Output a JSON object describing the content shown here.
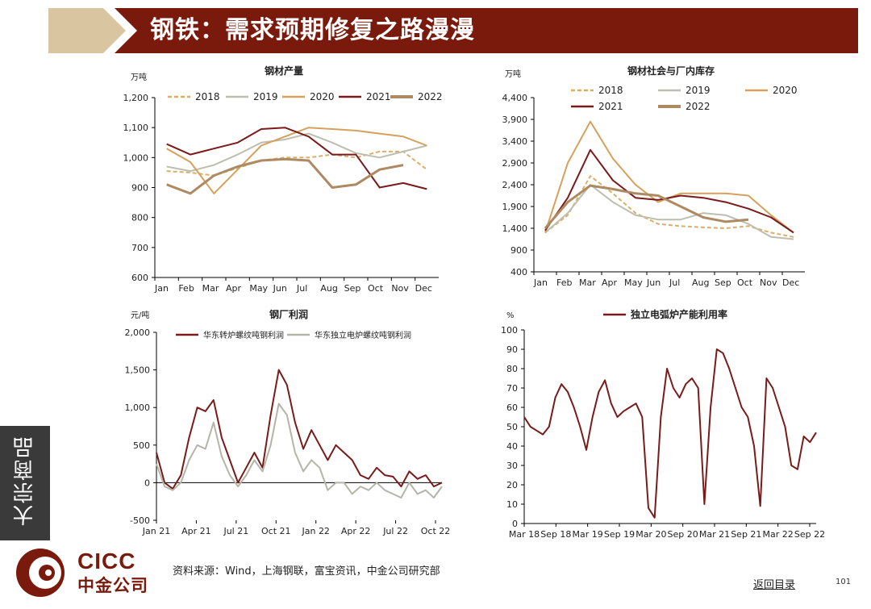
{
  "header": {
    "title": "钢铁：需求预期修复之路漫漫"
  },
  "sidebar": {
    "label": "大宗商品"
  },
  "footer": {
    "logo_en": "CICC",
    "logo_cn": "中金公司",
    "source": "资料来源：Wind，上海钢联，富宝资讯，中金公司研究部",
    "back_link": "返回目录",
    "page_number": "101"
  },
  "colors": {
    "brand": "#7a1a0c",
    "c2018": "#d9b06a",
    "c2019": "#bdbdb0",
    "c2020": "#d5a15c",
    "c2021": "#7a1a1a",
    "c2022": "#ae8a62",
    "grey": "#b4b4a8"
  },
  "chart_data": [
    {
      "id": "c1",
      "type": "line",
      "title": "钢材产量",
      "unit": "万吨",
      "categories": [
        "Jan",
        "Feb",
        "Mar",
        "Apr",
        "May",
        "Jun",
        "Jul",
        "Aug",
        "Sep",
        "Oct",
        "Nov",
        "Dec"
      ],
      "ylim": [
        600,
        1200
      ],
      "yticks": [
        "600",
        "700",
        "800",
        "900",
        "1,000",
        "1,100",
        "1,200"
      ],
      "legend_position": "top",
      "series": [
        {
          "name": "2018",
          "dash": true,
          "color": "#d9b06a",
          "values": [
            955,
            950,
            940,
            965,
            990,
            1000,
            1000,
            1010,
            1000,
            1020,
            1020,
            960
          ]
        },
        {
          "name": "2019",
          "color": "#bdbdb0",
          "values": [
            970,
            955,
            975,
            1010,
            1050,
            1060,
            1080,
            1050,
            1015,
            1000,
            1020,
            1040
          ]
        },
        {
          "name": "2020",
          "color": "#d5a15c",
          "values": [
            1030,
            985,
            880,
            960,
            1040,
            1070,
            1100,
            1095,
            1090,
            1080,
            1070,
            1040
          ]
        },
        {
          "name": "2021",
          "color": "#7a1a1a",
          "values": [
            1045,
            1010,
            1030,
            1050,
            1095,
            1100,
            1070,
            1010,
            1010,
            900,
            915,
            895
          ]
        },
        {
          "name": "2022",
          "color": "#ae8a62",
          "values": [
            910,
            880,
            940,
            970,
            990,
            995,
            990,
            900,
            910,
            960,
            975,
            null
          ]
        }
      ]
    },
    {
      "id": "c2",
      "type": "line",
      "title": "钢材社会与厂内库存",
      "unit": "万吨",
      "categories": [
        "Jan",
        "Feb",
        "Mar",
        "Apr",
        "May",
        "Jun",
        "Jul",
        "Aug",
        "Sep",
        "Oct",
        "Nov",
        "Dec"
      ],
      "ylim": [
        400,
        4400
      ],
      "yticks": [
        "400",
        "900",
        "1,400",
        "1,900",
        "2,400",
        "2,900",
        "3,400",
        "3,900",
        "4,400"
      ],
      "legend_position": "top",
      "series": [
        {
          "name": "2018",
          "dash": true,
          "color": "#d9b06a",
          "values": [
            1300,
            1700,
            2600,
            2200,
            1750,
            1500,
            1450,
            1420,
            1400,
            1450,
            1300,
            1200
          ]
        },
        {
          "name": "2019",
          "color": "#bdbdb0",
          "values": [
            1300,
            1750,
            2400,
            2000,
            1700,
            1600,
            1600,
            1750,
            1700,
            1500,
            1200,
            1150
          ]
        },
        {
          "name": "2020",
          "color": "#d5a15c",
          "values": [
            1300,
            2900,
            3850,
            3000,
            2400,
            2000,
            2200,
            2200,
            2200,
            2150,
            1700,
            1300
          ]
        },
        {
          "name": "2021",
          "color": "#7a1a1a",
          "values": [
            1350,
            2100,
            3200,
            2500,
            2100,
            2050,
            2150,
            2100,
            2000,
            1850,
            1650,
            1300
          ]
        },
        {
          "name": "2022",
          "color": "#ae8a62",
          "values": [
            1400,
            2000,
            2380,
            2300,
            2200,
            2150,
            1900,
            1650,
            1550,
            1600,
            null,
            null
          ]
        }
      ]
    },
    {
      "id": "c3",
      "type": "line",
      "title": "钢厂利润",
      "unit": "元/吨",
      "xticks": [
        "Jan 21",
        "Apr 21",
        "Jul 21",
        "Oct 21",
        "Jan 22",
        "Apr 22",
        "Jul 22",
        "Oct 22"
      ],
      "ylim": [
        -500,
        2000
      ],
      "yticks": [
        "-500",
        "0",
        "500",
        "1,000",
        "1,500",
        "2,000"
      ],
      "legend_position": "top",
      "series": [
        {
          "name": "华东转炉螺纹吨钢利润",
          "color": "#7a1a1a",
          "values": [
            400,
            0,
            -80,
            100,
            600,
            1000,
            950,
            1100,
            600,
            300,
            0,
            200,
            400,
            200,
            900,
            1500,
            1300,
            800,
            450,
            700,
            500,
            300,
            500,
            400,
            300,
            100,
            50,
            200,
            100,
            80,
            -50,
            150,
            50,
            100,
            -50,
            0
          ]
        },
        {
          "name": "华东独立电炉螺纹吨钢利润",
          "color": "#b4b4a8",
          "values": [
            250,
            -50,
            -100,
            0,
            300,
            500,
            450,
            800,
            350,
            100,
            -50,
            100,
            300,
            150,
            500,
            1050,
            900,
            400,
            150,
            300,
            200,
            -100,
            0,
            0,
            -150,
            -50,
            -100,
            0,
            -100,
            -150,
            -200,
            0,
            -150,
            -100,
            -200,
            -50
          ]
        }
      ]
    },
    {
      "id": "c4",
      "type": "line",
      "title": "独立电弧炉产能利用率",
      "unit": "%",
      "xticks": [
        "Mar 18",
        "Sep 18",
        "Mar 19",
        "Sep 19",
        "Mar 20",
        "Sep 20",
        "Mar 21",
        "Sep 21",
        "Mar 22",
        "Sep 22"
      ],
      "ylim": [
        0,
        100
      ],
      "yticks": [
        "0",
        "10",
        "20",
        "30",
        "40",
        "50",
        "60",
        "70",
        "80",
        "90",
        "100"
      ],
      "legend_position": "top",
      "series": [
        {
          "name": "独立电弧炉产能利用率",
          "color": "#7a1a1a",
          "values": [
            55,
            50,
            48,
            46,
            50,
            65,
            72,
            68,
            60,
            50,
            38,
            55,
            68,
            74,
            62,
            55,
            58,
            60,
            62,
            55,
            8,
            3,
            55,
            80,
            70,
            65,
            72,
            75,
            70,
            10,
            60,
            90,
            88,
            80,
            70,
            60,
            55,
            40,
            9,
            75,
            70,
            60,
            50,
            30,
            28,
            45,
            42,
            47
          ]
        }
      ]
    }
  ]
}
